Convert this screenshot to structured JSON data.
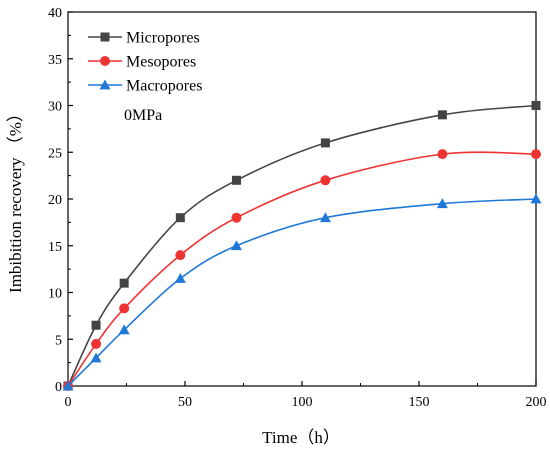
{
  "chart_data": {
    "type": "line",
    "xlabel": "Time（h）",
    "ylabel": "Imbibition recovery （%）",
    "xlim": [
      0,
      200
    ],
    "ylim": [
      0,
      40
    ],
    "xticks": [
      0,
      50,
      100,
      150,
      200
    ],
    "yticks": [
      0,
      5,
      10,
      15,
      20,
      25,
      30,
      35,
      40
    ],
    "legend_position": "top-left",
    "annotation": "0MPa",
    "grid": false,
    "series": [
      {
        "name": "Micropores",
        "color": "#444444",
        "marker": "square",
        "x": [
          0,
          12,
          24,
          48,
          72,
          110,
          160,
          200
        ],
        "y": [
          0,
          6.5,
          11,
          18,
          22,
          26,
          29,
          30
        ]
      },
      {
        "name": "Mesopores",
        "color": "#ee3333",
        "marker": "circle",
        "x": [
          0,
          12,
          24,
          48,
          72,
          110,
          160,
          200
        ],
        "y": [
          0,
          4.5,
          8.3,
          14,
          18,
          22,
          24.8,
          24.8
        ]
      },
      {
        "name": "Macropores",
        "color": "#1f77d8",
        "marker": "triangle",
        "x": [
          0,
          12,
          24,
          48,
          72,
          110,
          160,
          200
        ],
        "y": [
          0,
          3,
          6,
          11.5,
          15,
          18,
          19.5,
          20
        ]
      }
    ]
  }
}
